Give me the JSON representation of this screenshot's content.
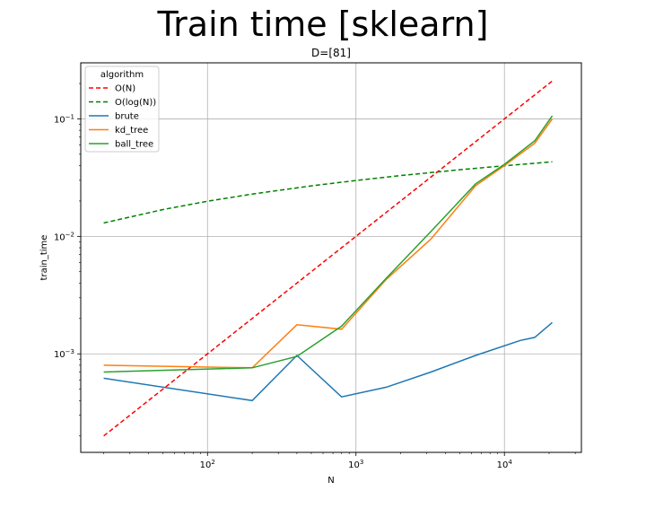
{
  "figure": {
    "suptitle": "Train time [sklearn]"
  },
  "chart_data": {
    "type": "line",
    "title": "D=[81]",
    "xlabel": "N",
    "ylabel": "train_time",
    "xscale": "log",
    "yscale": "log",
    "xlim": [
      14,
      33000
    ],
    "ylim": [
      0.000145,
      0.3
    ],
    "grid": true,
    "legend": {
      "title": "algorithm",
      "placement": "upper-left"
    },
    "x_ticks": [
      {
        "value": 100,
        "base": "10",
        "exp": "2"
      },
      {
        "value": 1000,
        "base": "10",
        "exp": "3"
      },
      {
        "value": 10000,
        "base": "10",
        "exp": "4"
      }
    ],
    "y_ticks": [
      {
        "value": 0.001,
        "base": "10",
        "exp": "−3"
      },
      {
        "value": 0.01,
        "base": "10",
        "exp": "−2"
      },
      {
        "value": 0.1,
        "base": "10",
        "exp": "−1"
      }
    ],
    "series": [
      {
        "name": "O(N)",
        "color": "#ff0000",
        "dashed": true,
        "x": [
          20,
          21000
        ],
        "y": [
          0.0002,
          0.21
        ]
      },
      {
        "name": "O(log(N))",
        "color": "#008000",
        "dashed": true,
        "x": [
          20,
          50,
          100,
          200,
          500,
          1000,
          2000,
          5000,
          10000,
          21000
        ],
        "y": [
          0.013,
          0.0169,
          0.0199,
          0.0229,
          0.0269,
          0.0299,
          0.0329,
          0.0369,
          0.0399,
          0.0431
        ]
      },
      {
        "name": "brute",
        "color": "#1f77b4",
        "dashed": false,
        "x": [
          20,
          200,
          400,
          800,
          1600,
          3200,
          6400,
          12800,
          16000,
          21000
        ],
        "y": [
          0.00062,
          0.0004,
          0.00097,
          0.00043,
          0.00052,
          0.0007,
          0.00097,
          0.0013,
          0.00138,
          0.00185
        ]
      },
      {
        "name": "kd_tree",
        "color": "#ff7f0e",
        "dashed": false,
        "x": [
          20,
          200,
          400,
          800,
          1600,
          3200,
          6400,
          10000,
          16000,
          21000
        ],
        "y": [
          0.0008,
          0.00076,
          0.00177,
          0.00162,
          0.0043,
          0.0095,
          0.027,
          0.04,
          0.062,
          0.1
        ]
      },
      {
        "name": "ball_tree",
        "color": "#2ca02c",
        "dashed": false,
        "x": [
          20,
          200,
          400,
          800,
          1600,
          3200,
          6400,
          10000,
          16000,
          21000
        ],
        "y": [
          0.0007,
          0.00076,
          0.00095,
          0.00172,
          0.0044,
          0.011,
          0.028,
          0.041,
          0.065,
          0.106
        ]
      }
    ]
  }
}
